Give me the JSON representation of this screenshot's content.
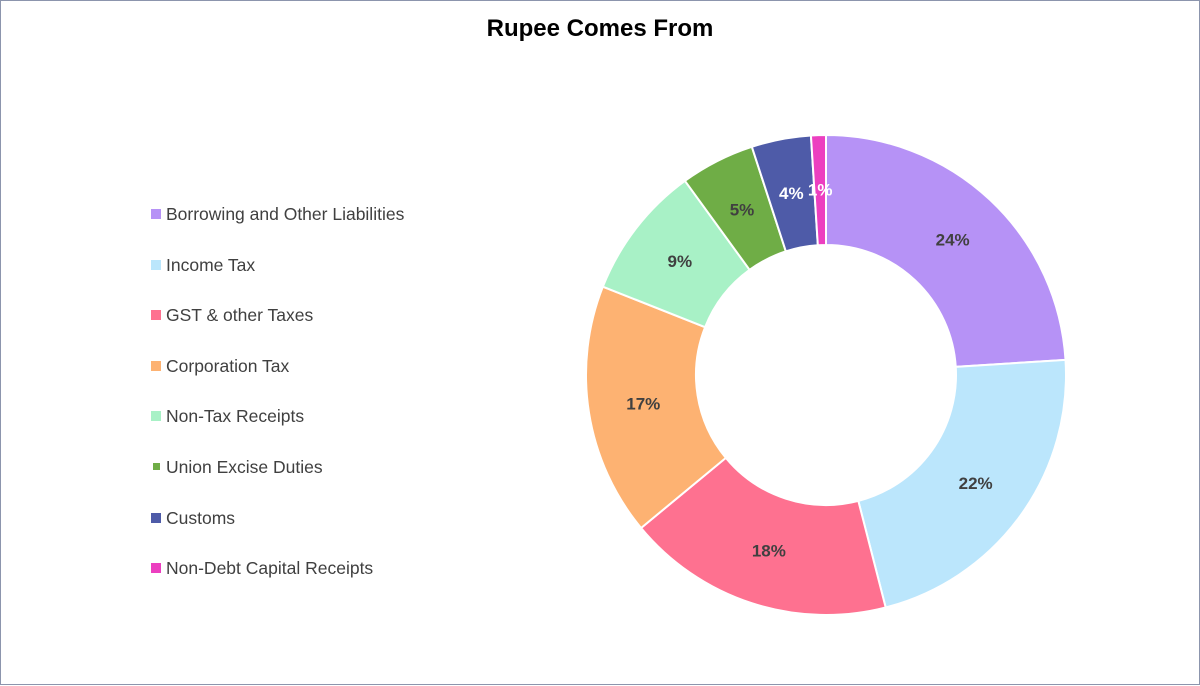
{
  "chart_data": {
    "type": "pie",
    "style": "donut",
    "title": "Rupee Comes From",
    "legend_position": "left",
    "categories": [
      "Borrowing and Other Liabilities",
      "Income Tax",
      "GST & other Taxes",
      "Corporation Tax",
      "Non-Tax Receipts",
      "Union Excise Duties",
      "Customs",
      "Non-Debt Capital Receipts"
    ],
    "values": [
      24,
      22,
      18,
      17,
      9,
      5,
      4,
      1
    ],
    "data_labels": [
      "24%",
      "22%",
      "18%",
      "17%",
      "9%",
      "5%",
      "4%",
      "1%"
    ],
    "colors": [
      "#b692f6",
      "#bbe6fc",
      "#fe7190",
      "#fdb272",
      "#a8f1c6",
      "#6fad46",
      "#4e5ba8",
      "#ec3fc0"
    ],
    "label_colors": [
      "#404040",
      "#404040",
      "#404040",
      "#404040",
      "#404040",
      "#404040",
      "#ffffff",
      "#ffffff"
    ]
  }
}
